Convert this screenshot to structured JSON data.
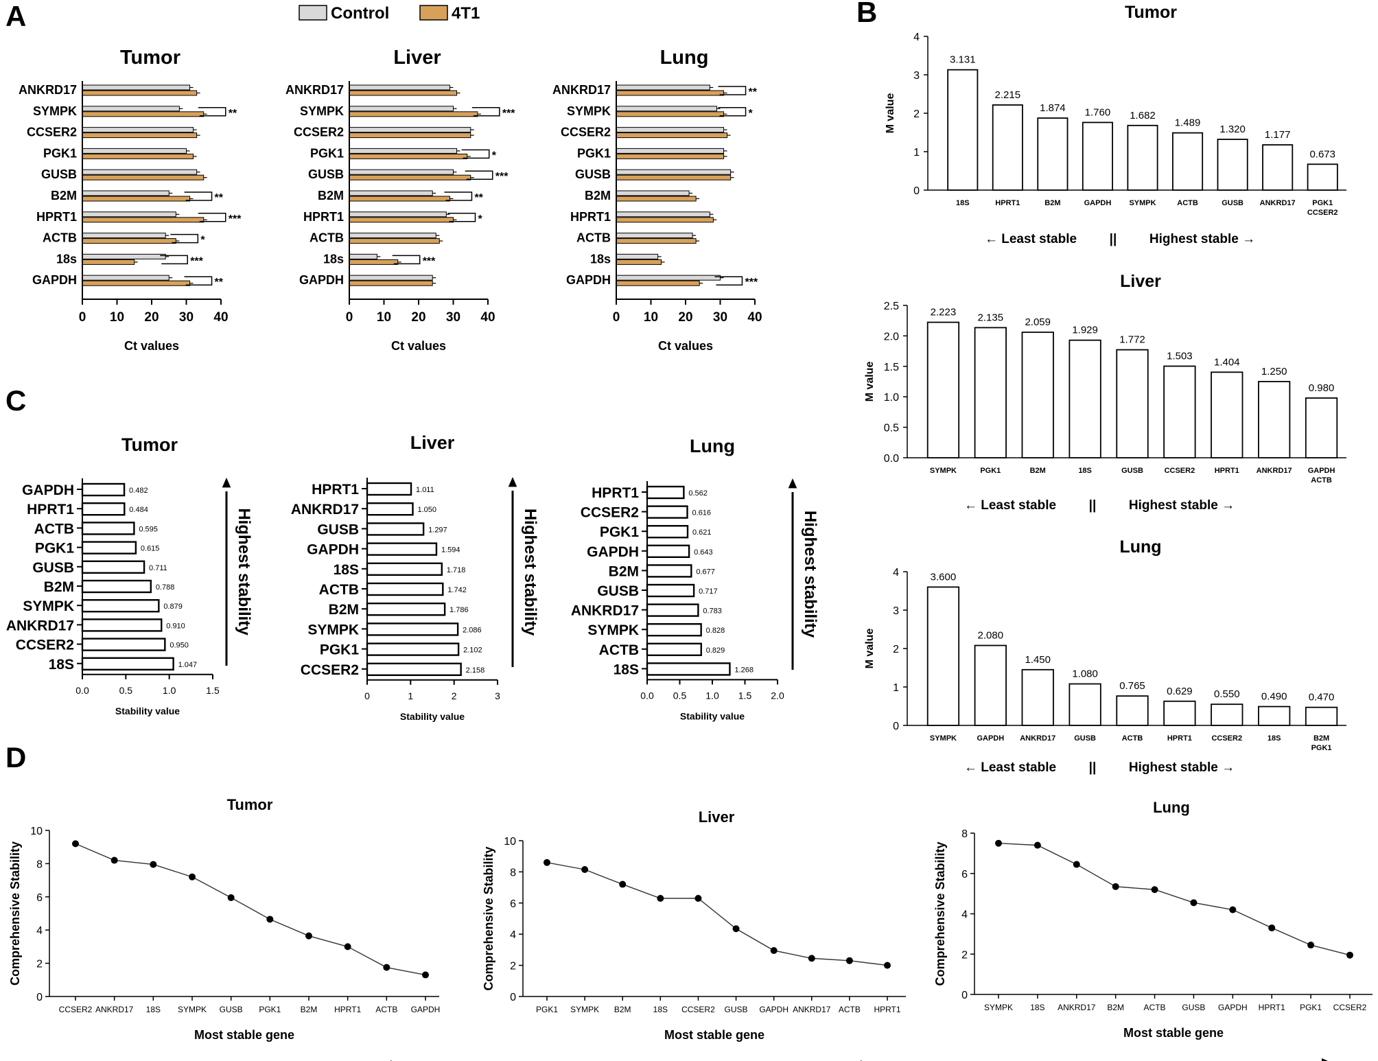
{
  "panel_labels": [
    "A",
    "B",
    "C",
    "D"
  ],
  "legend": [
    {
      "label": "Control",
      "color": "#d9d9d9"
    },
    {
      "label": "4T1",
      "color": "#d8a15a"
    }
  ],
  "colors": {
    "control": "#d9d9d9",
    "t4t1": "#d8a15a",
    "axis": "#000000",
    "line": "#333333"
  },
  "chart_data": [
    {
      "id": "A-tumor",
      "type": "bar",
      "orientation": "horizontal",
      "title": "Tumor",
      "categories": [
        "ANKRD17",
        "SYMPK",
        "CCSER2",
        "PGK1",
        "GUSB",
        "B2M",
        "HPRT1",
        "ACTB",
        "18s",
        "GAPDH"
      ],
      "series": [
        {
          "name": "Control",
          "values": [
            31,
            28,
            32,
            30,
            33,
            25,
            27,
            24,
            24,
            25
          ]
        },
        {
          "name": "4T1",
          "values": [
            33,
            35,
            33,
            32,
            35,
            31,
            35,
            27,
            15,
            31
          ]
        }
      ],
      "significance": [
        "",
        "**",
        "",
        "",
        "",
        "**",
        "***",
        "*",
        "***",
        "**"
      ],
      "xlabel": "Ct values",
      "xlim": [
        0,
        40
      ],
      "xticks": [
        0,
        10,
        20,
        30,
        40
      ]
    },
    {
      "id": "A-liver",
      "type": "bar",
      "orientation": "horizontal",
      "title": "Liver",
      "categories": [
        "ANKRD17",
        "SYMPK",
        "CCSER2",
        "PGK1",
        "GUSB",
        "B2M",
        "HPRT1",
        "ACTB",
        "18s",
        "GAPDH"
      ],
      "series": [
        {
          "name": "Control",
          "values": [
            29,
            30,
            35,
            31,
            30,
            24,
            28,
            25,
            8,
            24
          ]
        },
        {
          "name": "4T1",
          "values": [
            31,
            37,
            35,
            34,
            35,
            29,
            30,
            26,
            14,
            24
          ]
        }
      ],
      "significance": [
        "",
        "***",
        "",
        "*",
        "***",
        "**",
        "*",
        "",
        "***",
        ""
      ],
      "xlabel": "Ct values",
      "xlim": [
        0,
        40
      ],
      "xticks": [
        0,
        10,
        20,
        30,
        40
      ]
    },
    {
      "id": "A-lung",
      "type": "bar",
      "orientation": "horizontal",
      "title": "Lung",
      "categories": [
        "ANKRD17",
        "SYMPK",
        "CCSER2",
        "PGK1",
        "GUSB",
        "B2M",
        "HPRT1",
        "ACTB",
        "18s",
        "GAPDH"
      ],
      "series": [
        {
          "name": "Control",
          "values": [
            27,
            29,
            31,
            31,
            33,
            21,
            27,
            22,
            12,
            30
          ]
        },
        {
          "name": "4T1",
          "values": [
            31,
            31,
            32,
            31,
            33,
            23,
            28,
            23,
            13,
            24
          ]
        }
      ],
      "significance": [
        "**",
        "*",
        "",
        "",
        "",
        "",
        "",
        "",
        "",
        "***"
      ],
      "xlabel": "Ct values",
      "xlim": [
        0,
        40
      ],
      "xticks": [
        0,
        10,
        20,
        30,
        40
      ]
    },
    {
      "id": "B-tumor",
      "type": "bar",
      "title": "Tumor",
      "categories": [
        "18S",
        "HPRT1",
        "B2M",
        "GAPDH",
        "SYMPK",
        "ACTB",
        "GUSB",
        "ANKRD17",
        "PGK1\nCCSER2"
      ],
      "values": [
        3.131,
        2.215,
        1.874,
        1.76,
        1.682,
        1.489,
        1.32,
        1.177,
        0.673
      ],
      "value_labels": [
        "3.131",
        "2.215",
        "1.874",
        "1.760",
        "1.682",
        "1.489",
        "1.320",
        "1.177",
        "0.673"
      ],
      "ylabel": "M value",
      "ylim": [
        0,
        4
      ],
      "yticks": [
        "0",
        "1",
        "2",
        "3",
        "4"
      ],
      "xnote": [
        "←  Least stable",
        "||",
        "Highest stable  →"
      ]
    },
    {
      "id": "B-liver",
      "type": "bar",
      "title": "Liver",
      "categories": [
        "SYMPK",
        "PGK1",
        "B2M",
        "18S",
        "GUSB",
        "CCSER2",
        "HPRT1",
        "ANKRD17",
        "GAPDH\nACTB"
      ],
      "values": [
        2.223,
        2.135,
        2.059,
        1.929,
        1.772,
        1.503,
        1.404,
        1.25,
        0.98
      ],
      "value_labels": [
        "2.223",
        "2.135",
        "2.059",
        "1.929",
        "1.772",
        "1.503",
        "1.404",
        "1.250",
        "0.980"
      ],
      "ylabel": "M value",
      "ylim": [
        0,
        2.5
      ],
      "yticks": [
        "0.0",
        "0.5",
        "1.0",
        "1.5",
        "2.0",
        "2.5"
      ],
      "xnote": [
        "←  Least stable",
        "||",
        "Highest stable  →"
      ]
    },
    {
      "id": "B-lung",
      "type": "bar",
      "title": "Lung",
      "categories": [
        "SYMPK",
        "GAPDH",
        "ANKRD17",
        "GUSB",
        "ACTB",
        "HPRT1",
        "CCSER2",
        "18S",
        "B2M\nPGK1"
      ],
      "values": [
        3.6,
        2.08,
        1.45,
        1.08,
        0.765,
        0.629,
        0.55,
        0.49,
        0.47
      ],
      "value_labels": [
        "3.600",
        "2.080",
        "1.450",
        "1.080",
        "0.765",
        "0.629",
        "0.550",
        "0.490",
        "0.470"
      ],
      "ylabel": "M value",
      "ylim": [
        0,
        4
      ],
      "yticks": [
        "0",
        "1",
        "2",
        "3",
        "4"
      ],
      "xnote": [
        "←  Least stable",
        "||",
        "Highest stable  →"
      ]
    },
    {
      "id": "C-tumor",
      "type": "bar",
      "orientation": "horizontal",
      "title": "Tumor",
      "categories": [
        "GAPDH",
        "HPRT1",
        "ACTB",
        "PGK1",
        "GUSB",
        "B2M",
        "SYMPK",
        "ANKRD17",
        "CCSER2",
        "18S"
      ],
      "values": [
        0.482,
        0.484,
        0.595,
        0.615,
        0.711,
        0.788,
        0.879,
        0.91,
        0.95,
        1.047
      ],
      "value_labels": [
        "0.482",
        "0.484",
        "0.595",
        "0.615",
        "0.711",
        "0.788",
        "0.879",
        "0.910",
        "0.950",
        "1.047"
      ],
      "xlabel": "Stability value",
      "xlim": [
        0,
        1.5
      ],
      "xticks": [
        "0.0",
        "0.5",
        "1.0",
        "1.5"
      ],
      "arrow_label": "Highest stability"
    },
    {
      "id": "C-liver",
      "type": "bar",
      "orientation": "horizontal",
      "title": "Liver",
      "categories": [
        "HPRT1",
        "ANKRD17",
        "GUSB",
        "GAPDH",
        "18S",
        "ACTB",
        "B2M",
        "SYMPK",
        "PGK1",
        "CCSER2"
      ],
      "values": [
        1.011,
        1.05,
        1.297,
        1.594,
        1.718,
        1.742,
        1.786,
        2.086,
        2.102,
        2.158
      ],
      "value_labels": [
        "1.011",
        "1.050",
        "1.297",
        "1.594",
        "1.718",
        "1.742",
        "1.786",
        "2.086",
        "2.102",
        "2.158"
      ],
      "xlabel": "Stability value",
      "xlim": [
        0,
        3
      ],
      "xticks": [
        "0",
        "1",
        "2",
        "3"
      ],
      "arrow_label": "Highest stability"
    },
    {
      "id": "C-lung",
      "type": "bar",
      "orientation": "horizontal",
      "title": "Lung",
      "categories": [
        "HPRT1",
        "CCSER2",
        "PGK1",
        "GAPDH",
        "B2M",
        "GUSB",
        "ANKRD17",
        "SYMPK",
        "ACTB",
        "18S"
      ],
      "values": [
        0.562,
        0.616,
        0.621,
        0.643,
        0.677,
        0.717,
        0.783,
        0.828,
        0.829,
        1.268
      ],
      "value_labels": [
        "0.562",
        "0.616",
        "0.621",
        "0.643",
        "0.677",
        "0.717",
        "0.783",
        "0.828",
        "0.829",
        "1.268"
      ],
      "xlabel": "Stability value",
      "xlim": [
        0,
        2
      ],
      "xticks": [
        "0.0",
        "0.5",
        "1.0",
        "1.5",
        "2.0"
      ],
      "arrow_label": "Highest stability"
    },
    {
      "id": "D-tumor",
      "type": "line",
      "title": "Tumor",
      "categories": [
        "CCSER2",
        "ANKRD17",
        "18S",
        "SYMPK",
        "GUSB",
        "PGK1",
        "B2M",
        "HPRT1",
        "ACTB",
        "GAPDH"
      ],
      "values": [
        9.2,
        8.2,
        7.95,
        7.2,
        5.95,
        4.65,
        3.65,
        3.0,
        1.75,
        1.3
      ],
      "xlabel": "Most stable gene",
      "ylabel": "Comprehensive Stability",
      "ylim": [
        0,
        10
      ],
      "yticks": [
        "0",
        "2",
        "4",
        "6",
        "8",
        "10"
      ]
    },
    {
      "id": "D-liver",
      "type": "line",
      "title": "Liver",
      "categories": [
        "PGK1",
        "SYMPK",
        "B2M",
        "18S",
        "CCSER2",
        "GUSB",
        "GAPDH",
        "ANKRD17",
        "ACTB",
        "HPRT1"
      ],
      "values": [
        8.6,
        8.15,
        7.2,
        6.3,
        6.3,
        4.35,
        2.95,
        2.45,
        2.3,
        2.0
      ],
      "xlabel": "Most stable gene",
      "ylabel": "Comprehensive Stability",
      "ylim": [
        0,
        10
      ],
      "yticks": [
        "0",
        "2",
        "4",
        "6",
        "8",
        "10"
      ]
    },
    {
      "id": "D-lung",
      "type": "line",
      "title": "Lung",
      "categories": [
        "SYMPK",
        "18S",
        "ANKRD17",
        "B2M",
        "ACTB",
        "GUSB",
        "GAPDH",
        "HPRT1",
        "PGK1",
        "CCSER2"
      ],
      "values": [
        7.5,
        7.4,
        6.45,
        5.35,
        5.2,
        4.55,
        4.2,
        3.3,
        2.45,
        1.95
      ],
      "xlabel": "Most stable gene",
      "ylabel": "Comprehensive Stability",
      "ylim": [
        0,
        8
      ],
      "yticks": [
        "0",
        "2",
        "4",
        "6",
        "8"
      ]
    }
  ]
}
